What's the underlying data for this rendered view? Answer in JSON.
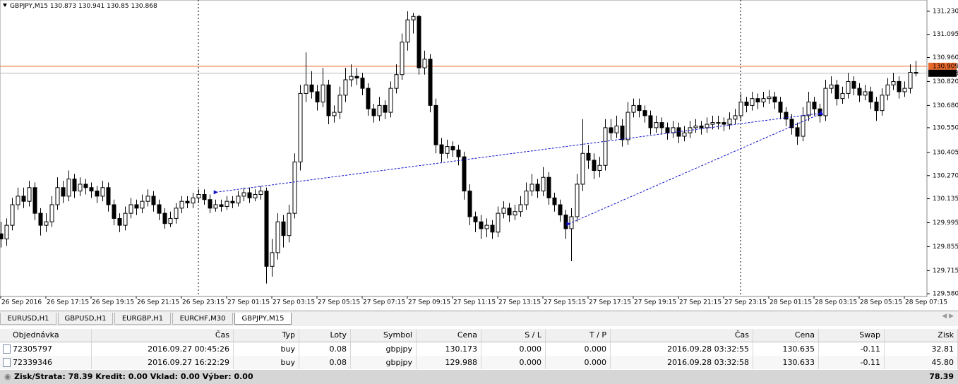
{
  "chart_data": {
    "type": "candlestick",
    "title": "GBPJPY,M15",
    "categories": [
      "26 Sep 2016",
      null,
      null,
      null,
      null,
      null,
      null,
      null,
      "26 Sep 17:15",
      null,
      null,
      null,
      null,
      null,
      null,
      null,
      "26 Sep 19:15",
      null,
      null,
      null,
      null,
      null,
      null,
      null,
      "26 Sep 21:15",
      null,
      null,
      null,
      null,
      null,
      null,
      null,
      "26 Sep 23:15",
      null,
      null,
      null,
      null,
      null,
      null,
      null,
      "27 Sep 01:15",
      null,
      null,
      null,
      null,
      null,
      null,
      null,
      "27 Sep 03:15",
      null,
      null,
      null,
      null,
      null,
      null,
      null,
      "27 Sep 05:15",
      null,
      null,
      null,
      null,
      null,
      null,
      null,
      "27 Sep 07:15",
      null,
      null,
      null,
      null,
      null,
      null,
      null,
      "27 Sep 09:15",
      null,
      null,
      null,
      null,
      null,
      null,
      null,
      "27 Sep 11:15",
      null,
      null,
      null,
      null,
      null,
      null,
      null,
      "27 Sep 13:15",
      null,
      null,
      null,
      null,
      null,
      null,
      null,
      "27 Sep 15:15",
      null,
      null,
      null,
      null,
      null,
      null,
      null,
      "27 Sep 17:15",
      null,
      null,
      null,
      null,
      null,
      null,
      null,
      "27 Sep 19:15",
      null,
      null,
      null,
      null,
      null,
      null,
      null,
      "27 Sep 21:15",
      null,
      null,
      null,
      null,
      null,
      null,
      null,
      "27 Sep 23:15",
      null,
      null,
      null,
      null,
      null,
      null,
      null,
      "28 Sep 01:15",
      null,
      null,
      null,
      null,
      null,
      null,
      null,
      "28 Sep 03:15",
      null,
      null,
      null,
      null,
      null,
      null,
      null,
      "28 Sep 05:15",
      null,
      null,
      null,
      null,
      null,
      null,
      null,
      "28 Sep 07:15",
      null,
      null
    ],
    "candles": [
      [
        129.93,
        130.0,
        129.85,
        129.9
      ],
      [
        129.9,
        130.02,
        129.86,
        129.98
      ],
      [
        129.98,
        130.14,
        129.95,
        130.1
      ],
      [
        130.1,
        130.2,
        130.07,
        130.15
      ],
      [
        130.15,
        130.2,
        130.08,
        130.12
      ],
      [
        130.12,
        130.24,
        130.09,
        130.2
      ],
      [
        130.2,
        130.23,
        130.01,
        130.05
      ],
      [
        130.05,
        130.08,
        129.92,
        129.98
      ],
      [
        129.98,
        130.05,
        129.94,
        130.0
      ],
      [
        130.0,
        130.15,
        129.97,
        130.1
      ],
      [
        130.1,
        130.26,
        130.07,
        130.2
      ],
      [
        130.2,
        130.24,
        130.11,
        130.15
      ],
      [
        130.15,
        130.3,
        130.12,
        130.25
      ],
      [
        130.25,
        130.28,
        130.14,
        130.18
      ],
      [
        130.18,
        130.26,
        130.15,
        130.22
      ],
      [
        130.22,
        130.25,
        130.16,
        130.2
      ],
      [
        130.2,
        130.23,
        130.14,
        130.18
      ],
      [
        130.18,
        130.21,
        130.11,
        130.15
      ],
      [
        130.15,
        130.24,
        130.12,
        130.2
      ],
      [
        130.2,
        130.23,
        130.06,
        130.1
      ],
      [
        130.1,
        130.13,
        129.98,
        130.02
      ],
      [
        130.02,
        130.05,
        129.94,
        129.98
      ],
      [
        129.98,
        130.09,
        129.95,
        130.05
      ],
      [
        130.05,
        130.14,
        130.02,
        130.1
      ],
      [
        130.1,
        130.13,
        130.04,
        130.08
      ],
      [
        130.08,
        130.16,
        130.05,
        130.12
      ],
      [
        130.12,
        130.19,
        130.09,
        130.15
      ],
      [
        130.15,
        130.18,
        130.06,
        130.1
      ],
      [
        130.1,
        130.13,
        130.01,
        130.05
      ],
      [
        130.05,
        130.08,
        129.96,
        129.99
      ],
      [
        129.99,
        130.06,
        129.97,
        130.02
      ],
      [
        130.02,
        130.11,
        129.99,
        130.08
      ],
      [
        130.08,
        130.15,
        130.05,
        130.12
      ],
      [
        130.12,
        130.15,
        130.08,
        130.11
      ],
      [
        130.11,
        130.17,
        130.08,
        130.14
      ],
      [
        130.14,
        130.19,
        130.11,
        130.16
      ],
      [
        130.16,
        130.19,
        130.1,
        130.13
      ],
      [
        130.13,
        130.16,
        130.05,
        130.08
      ],
      [
        130.08,
        130.13,
        130.06,
        130.1
      ],
      [
        130.1,
        130.13,
        130.06,
        130.09
      ],
      [
        130.09,
        130.15,
        130.07,
        130.12
      ],
      [
        130.12,
        130.15,
        130.08,
        130.11
      ],
      [
        130.11,
        130.18,
        130.09,
        130.15
      ],
      [
        130.15,
        130.2,
        130.12,
        130.17
      ],
      [
        130.17,
        130.2,
        130.11,
        130.14
      ],
      [
        130.14,
        130.19,
        130.12,
        130.16
      ],
      [
        130.16,
        130.21,
        130.13,
        130.18
      ],
      [
        130.18,
        130.2,
        129.64,
        129.74
      ],
      [
        129.74,
        129.9,
        129.68,
        129.82
      ],
      [
        129.82,
        130.05,
        129.78,
        130.0
      ],
      [
        130.0,
        130.04,
        129.85,
        129.92
      ],
      [
        129.92,
        130.1,
        129.88,
        130.05
      ],
      [
        130.05,
        130.4,
        130.02,
        130.35
      ],
      [
        130.35,
        130.8,
        130.3,
        130.75
      ],
      [
        130.75,
        130.99,
        130.7,
        130.8
      ],
      [
        130.8,
        130.88,
        130.72,
        130.76
      ],
      [
        130.76,
        130.8,
        130.65,
        130.7
      ],
      [
        130.7,
        130.9,
        130.67,
        130.8
      ],
      [
        130.8,
        130.83,
        130.57,
        130.62
      ],
      [
        130.62,
        130.68,
        130.58,
        130.64
      ],
      [
        130.64,
        130.79,
        130.6,
        130.74
      ],
      [
        130.74,
        130.9,
        130.7,
        130.83
      ],
      [
        130.83,
        130.92,
        130.79,
        130.85
      ],
      [
        130.85,
        130.9,
        130.8,
        130.84
      ],
      [
        130.84,
        130.87,
        130.74,
        130.78
      ],
      [
        130.78,
        130.81,
        130.62,
        130.66
      ],
      [
        130.66,
        130.69,
        130.58,
        130.62
      ],
      [
        130.62,
        130.73,
        130.59,
        130.68
      ],
      [
        130.68,
        130.71,
        130.6,
        130.64
      ],
      [
        130.64,
        130.82,
        130.61,
        130.78
      ],
      [
        130.78,
        130.92,
        130.75,
        130.86
      ],
      [
        130.86,
        131.1,
        130.83,
        131.05
      ],
      [
        131.05,
        131.23,
        131.0,
        131.18
      ],
      [
        131.18,
        131.22,
        131.1,
        131.2
      ],
      [
        131.2,
        131.21,
        130.86,
        130.9
      ],
      [
        130.9,
        131.0,
        130.86,
        130.95
      ],
      [
        130.95,
        130.98,
        130.64,
        130.68
      ],
      [
        130.68,
        130.72,
        130.4,
        130.45
      ],
      [
        130.45,
        130.49,
        130.35,
        130.4
      ],
      [
        130.4,
        130.48,
        130.37,
        130.44
      ],
      [
        130.44,
        130.47,
        130.38,
        130.42
      ],
      [
        130.42,
        130.45,
        130.33,
        130.38
      ],
      [
        130.38,
        130.41,
        130.13,
        130.18
      ],
      [
        130.18,
        130.22,
        129.98,
        130.03
      ],
      [
        130.03,
        130.06,
        129.94,
        130.0
      ],
      [
        130.0,
        130.04,
        129.9,
        129.96
      ],
      [
        129.96,
        130.02,
        129.91,
        129.98
      ],
      [
        129.98,
        130.01,
        129.9,
        129.94
      ],
      [
        129.94,
        130.09,
        129.91,
        130.05
      ],
      [
        130.05,
        130.12,
        130.02,
        130.08
      ],
      [
        130.08,
        130.11,
        130.0,
        130.04
      ],
      [
        130.04,
        130.1,
        130.01,
        130.06
      ],
      [
        130.06,
        130.15,
        130.03,
        130.1
      ],
      [
        130.1,
        130.23,
        130.07,
        130.18
      ],
      [
        130.18,
        130.28,
        130.15,
        130.22
      ],
      [
        130.22,
        130.25,
        130.14,
        130.18
      ],
      [
        130.18,
        130.32,
        130.15,
        130.26
      ],
      [
        130.26,
        130.29,
        130.1,
        130.14
      ],
      [
        130.14,
        130.17,
        130.06,
        130.1
      ],
      [
        130.1,
        130.13,
        130.0,
        130.04
      ],
      [
        130.04,
        130.07,
        129.9,
        129.96
      ],
      [
        129.96,
        130.08,
        129.77,
        130.03
      ],
      [
        130.03,
        130.28,
        130.0,
        130.22
      ],
      [
        130.22,
        130.6,
        130.18,
        130.4
      ],
      [
        130.4,
        130.45,
        130.31,
        130.36
      ],
      [
        130.36,
        130.4,
        130.25,
        130.3
      ],
      [
        130.3,
        130.38,
        130.26,
        130.33
      ],
      [
        130.33,
        130.6,
        130.3,
        130.55
      ],
      [
        130.55,
        130.6,
        130.48,
        130.52
      ],
      [
        130.52,
        130.62,
        130.49,
        130.56
      ],
      [
        130.56,
        130.6,
        130.44,
        130.48
      ],
      [
        130.48,
        130.7,
        130.45,
        130.64
      ],
      [
        130.64,
        130.72,
        130.61,
        130.68
      ],
      [
        130.68,
        130.72,
        130.61,
        130.65
      ],
      [
        130.65,
        130.68,
        130.58,
        130.62
      ],
      [
        130.62,
        130.65,
        130.51,
        130.55
      ],
      [
        130.55,
        130.62,
        130.52,
        130.58
      ],
      [
        130.58,
        130.61,
        130.51,
        130.55
      ],
      [
        130.55,
        130.58,
        130.48,
        130.52
      ],
      [
        130.52,
        130.59,
        130.49,
        130.55
      ],
      [
        130.55,
        130.58,
        130.46,
        130.5
      ],
      [
        130.5,
        130.56,
        130.47,
        130.52
      ],
      [
        130.52,
        130.59,
        130.49,
        130.55
      ],
      [
        130.55,
        130.6,
        130.52,
        130.56
      ],
      [
        130.56,
        130.59,
        130.51,
        130.55
      ],
      [
        130.55,
        130.61,
        130.52,
        130.57
      ],
      [
        130.57,
        130.62,
        130.54,
        130.58
      ],
      [
        130.58,
        130.62,
        130.54,
        130.58
      ],
      [
        130.58,
        130.61,
        130.53,
        130.57
      ],
      [
        130.57,
        130.64,
        130.54,
        130.6
      ],
      [
        130.6,
        130.66,
        130.57,
        130.62
      ],
      [
        130.62,
        130.75,
        130.59,
        130.7
      ],
      [
        130.7,
        130.73,
        130.64,
        130.68
      ],
      [
        130.68,
        130.76,
        130.65,
        130.72
      ],
      [
        130.72,
        130.75,
        130.66,
        130.7
      ],
      [
        130.7,
        130.76,
        130.67,
        130.72
      ],
      [
        130.72,
        130.77,
        130.69,
        130.73
      ],
      [
        130.73,
        130.76,
        130.66,
        130.7
      ],
      [
        130.7,
        130.73,
        130.6,
        130.64
      ],
      [
        130.64,
        130.67,
        130.56,
        130.6
      ],
      [
        130.6,
        130.63,
        130.51,
        130.55
      ],
      [
        130.55,
        130.58,
        130.45,
        130.5
      ],
      [
        130.5,
        130.67,
        130.47,
        130.62
      ],
      [
        130.62,
        130.76,
        130.59,
        130.7
      ],
      [
        130.7,
        130.73,
        130.62,
        130.66
      ],
      [
        130.66,
        130.69,
        130.58,
        130.62
      ],
      [
        130.62,
        130.83,
        130.59,
        130.78
      ],
      [
        130.78,
        130.85,
        130.75,
        130.8
      ],
      [
        130.8,
        130.83,
        130.68,
        130.72
      ],
      [
        130.72,
        130.79,
        130.69,
        130.75
      ],
      [
        130.75,
        130.87,
        130.72,
        130.82
      ],
      [
        130.82,
        130.85,
        130.74,
        130.78
      ],
      [
        130.78,
        130.81,
        130.7,
        130.74
      ],
      [
        130.74,
        130.8,
        130.71,
        130.76
      ],
      [
        130.76,
        130.79,
        130.66,
        130.7
      ],
      [
        130.7,
        130.73,
        130.59,
        130.65
      ],
      [
        130.65,
        130.78,
        130.62,
        130.74
      ],
      [
        130.74,
        130.84,
        130.71,
        130.8
      ],
      [
        130.8,
        130.87,
        130.77,
        130.82
      ],
      [
        130.82,
        130.85,
        130.72,
        130.76
      ],
      [
        130.76,
        130.82,
        130.73,
        130.78
      ],
      [
        130.78,
        130.92,
        130.75,
        130.873
      ],
      [
        130.873,
        130.941,
        130.85,
        130.868
      ]
    ],
    "ylim": [
      129.564,
      131.296
    ],
    "yticks": [
      {
        "value": 131.23,
        "label": "131.230"
      },
      131.095,
      {
        "value": 130.96,
        "label": "130.960"
      },
      {
        "value": 130.82,
        "label": "130.820"
      },
      {
        "value": 130.68,
        "label": "130.680"
      },
      {
        "value": 130.55,
        "label": "130.550"
      },
      130.405,
      {
        "value": 130.27,
        "label": "130.270"
      },
      130.135,
      129.995,
      129.855,
      129.715,
      {
        "value": 129.58,
        "label": "129.580"
      }
    ],
    "bid": 130.868,
    "ask": 130.909,
    "bull_color": "#ffffff",
    "bear_color": "#000000",
    "bid_color": "#000000",
    "ask_color": "#e8672a",
    "trade_color": "#1010d0"
  },
  "tabs": {
    "items": [
      "EURUSD,H1",
      "GBPUSD,H1",
      "EURGBP,H1",
      "EURCHF,M30",
      "GBPJPY,M15"
    ],
    "active": 4
  },
  "table": {
    "columns": [
      "Objednávka",
      "Čas",
      "Typ",
      "Loty",
      "Symbol",
      "Cena",
      "S / L",
      "T / P",
      "Čas",
      "Cena",
      "Swap",
      "Zisk"
    ],
    "rows": [
      [
        "72305797",
        "2016.09.27 00:45:26",
        "buy",
        "0.08",
        "gbpjpy",
        "130.173",
        "0.000",
        "0.000",
        "2016.09.28 03:32:55",
        "130.635",
        "-0.11",
        "32.81"
      ],
      [
        "72339346",
        "2016.09.27 16:22:29",
        "buy",
        "0.08",
        "gbpjpy",
        "129.988",
        "0.000",
        "0.000",
        "2016.09.28 03:32:58",
        "130.633",
        "-0.11",
        "45.80"
      ]
    ],
    "footer": {
      "summary": "Zisk/Strata: 78.39  Kredit: 0.00  Vklad: 0.00  Výber: 0.00",
      "total": "78.39"
    }
  }
}
